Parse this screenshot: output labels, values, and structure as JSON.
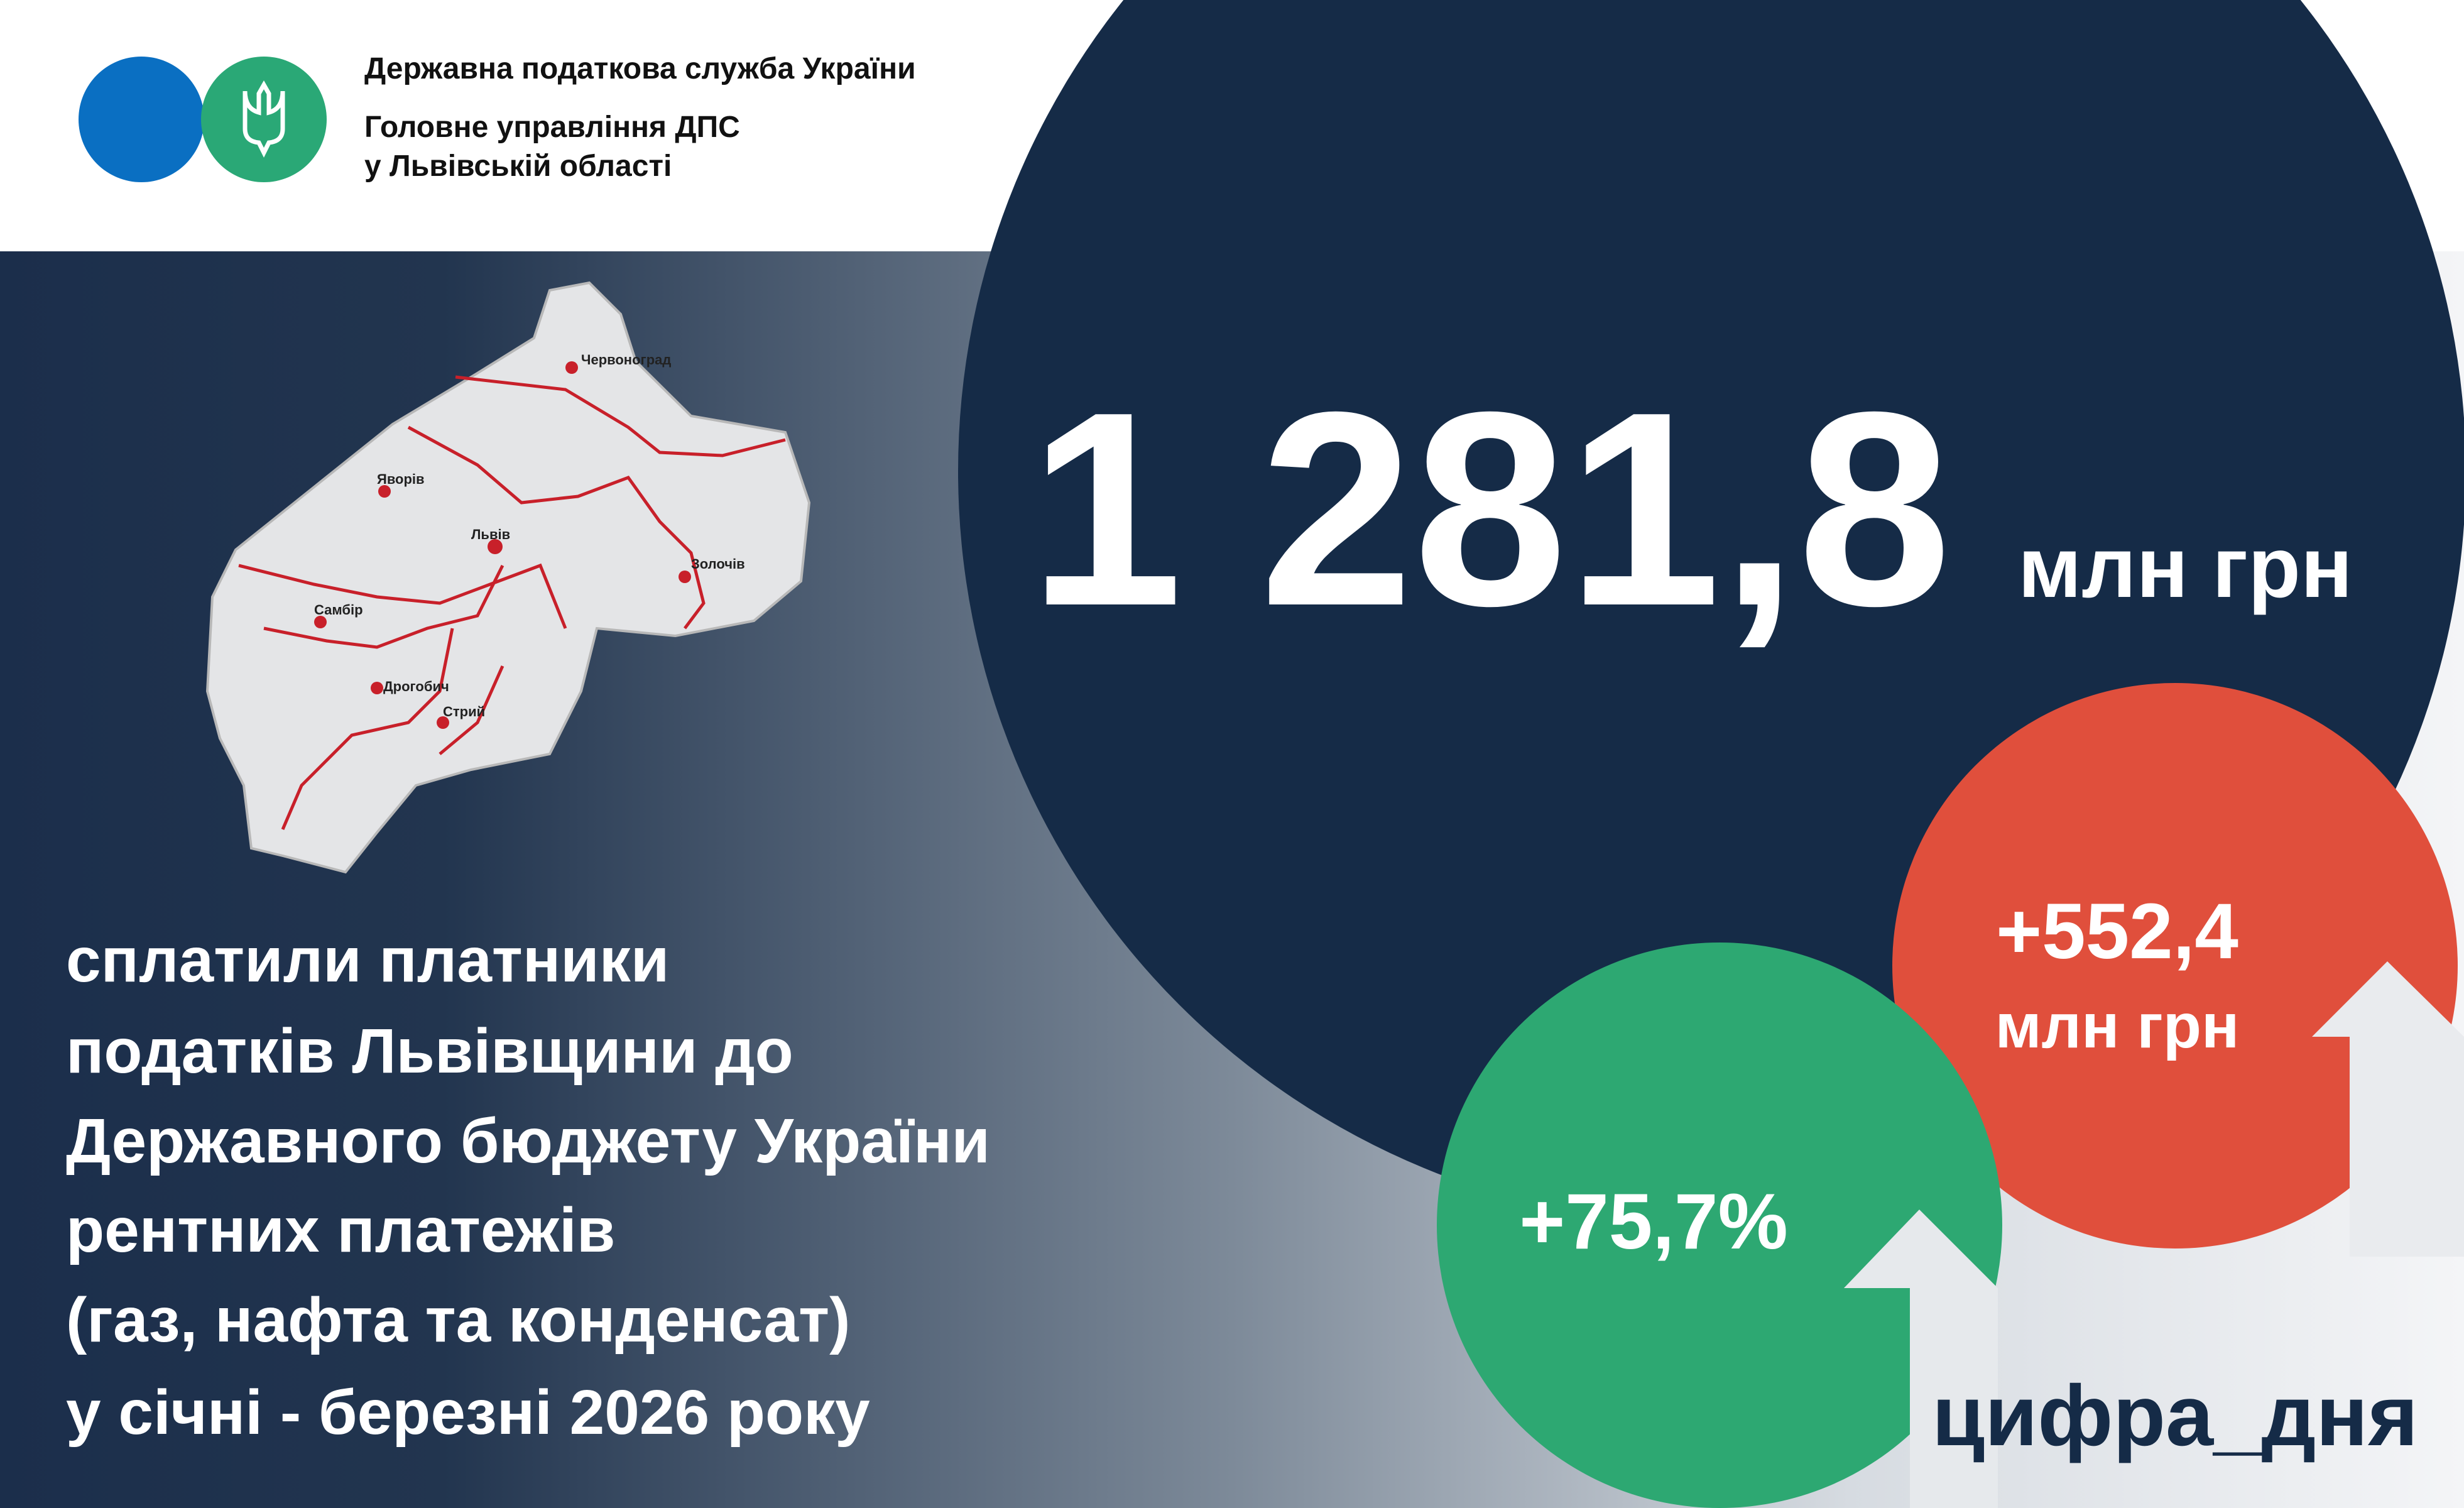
{
  "header": {
    "org_lines": [
      "Державна податкова служба України",
      "Головне управління ДПС",
      "у Львівській області"
    ]
  },
  "map": {
    "cities": [
      "Червоноград",
      "Яворів",
      "Львів",
      "Золочів",
      "Самбір",
      "Дрогобич",
      "Стрий"
    ]
  },
  "main": {
    "amount": "1 281,8",
    "unit": "млн грн"
  },
  "description": [
    "сплатили платники",
    "податків Львівщини до",
    "Державного бюджету України",
    "рентних платежів",
    "(газ, нафта та конденсат)",
    "у січні - березні 2026 року"
  ],
  "badges": [
    {
      "value": "+552,4",
      "unit": "млн грн"
    },
    {
      "value": "+75,7%"
    }
  ],
  "hashtag": "цифра_дня"
}
